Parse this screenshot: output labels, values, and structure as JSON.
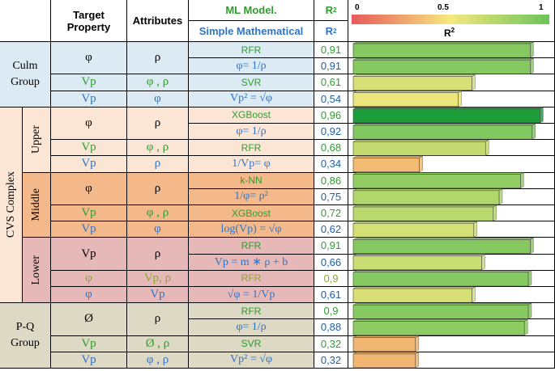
{
  "header": {
    "target_property": "Target Property",
    "attributes": "Attributes",
    "ml_model": "ML Model.",
    "simple_math": "Simple Mathematical",
    "r2_label": "R",
    "r2_sup": "2"
  },
  "legend": {
    "tick_min": "0",
    "tick_mid": "0.5",
    "tick_max": "1",
    "title": "R",
    "title_sup": "2",
    "gradient_colors": [
      "#e8595b",
      "#f5e97e",
      "#6cc25a"
    ]
  },
  "groups": [
    {
      "label": "Culm Group"
    },
    {
      "label": "CVS Complex",
      "subgroups": [
        "Upper",
        "Middle",
        "Lower"
      ]
    },
    {
      "label": "P-Q Group"
    }
  ],
  "rows": [
    {
      "target": "φ",
      "attr": "ρ",
      "model": "RFR",
      "r2": "0,91",
      "value": 0.91
    },
    {
      "target": "",
      "attr": "",
      "model": "φ= 1/ρ",
      "r2": "0,91",
      "value": 0.91
    },
    {
      "target": "Vp",
      "attr": "φ , ρ",
      "model": "SVR",
      "r2": "0,61",
      "value": 0.61
    },
    {
      "target": "Vp",
      "attr": "φ",
      "model": "Vp² = √φ",
      "r2": "0,54",
      "value": 0.54
    },
    {
      "target": "φ",
      "attr": "ρ",
      "model": "XGBoost",
      "r2": "0,96",
      "value": 0.96
    },
    {
      "target": "",
      "attr": "",
      "model": "φ= 1/ρ",
      "r2": "0,92",
      "value": 0.92
    },
    {
      "target": "Vp",
      "attr": "φ , ρ",
      "model": "RFR",
      "r2": "0,68",
      "value": 0.68
    },
    {
      "target": "Vp",
      "attr": "ρ",
      "model": "1/Vp= φ",
      "r2": "0,34",
      "value": 0.34
    },
    {
      "target": "φ",
      "attr": "ρ",
      "model": "k-NN",
      "r2": "0,86",
      "value": 0.86
    },
    {
      "target": "",
      "attr": "",
      "model": "1/φ= ρ²",
      "r2": "0,75",
      "value": 0.75
    },
    {
      "target": "Vp",
      "attr": "φ , ρ",
      "model": "XGBoost",
      "r2": "0,72",
      "value": 0.72
    },
    {
      "target": "Vp",
      "attr": "φ",
      "model": "log(Vp) = √φ",
      "r2": "0,62",
      "value": 0.62
    },
    {
      "target": "Vp",
      "attr": "ρ",
      "model": "RFR",
      "r2": "0,91",
      "value": 0.91
    },
    {
      "target": "",
      "attr": "",
      "model": "Vp = m ∗ ρ + b",
      "r2": "0,66",
      "value": 0.66
    },
    {
      "target": "φ",
      "attr": "Vp, ρ",
      "model": "RFR",
      "r2": "0,9",
      "value": 0.9
    },
    {
      "target": "φ",
      "attr": "Vp",
      "model": "√φ = 1/Vp",
      "r2": "0,61",
      "value": 0.61
    },
    {
      "target": "Ø",
      "attr": "ρ",
      "model": "RFR",
      "r2": "0,9",
      "value": 0.9
    },
    {
      "target": "",
      "attr": "",
      "model": "φ= 1/ρ",
      "r2": "0,88",
      "value": 0.88
    },
    {
      "target": "Vp",
      "attr": "Ø , ρ",
      "model": "SVR",
      "r2": "0,32",
      "value": 0.32
    },
    {
      "target": "Vp",
      "attr": "φ , ρ",
      "model": "Vp² = √φ",
      "r2": "0,32",
      "value": 0.32
    }
  ],
  "chart_data": {
    "type": "bar",
    "orientation": "horizontal",
    "xlim": [
      0,
      1
    ],
    "xlabel": "R²",
    "categories": [
      "RFR",
      "φ= 1/ρ",
      "SVR",
      "Vp² = √φ",
      "XGBoost",
      "φ= 1/ρ",
      "RFR",
      "1/Vp= φ",
      "k-NN",
      "1/φ= ρ²",
      "XGBoost",
      "log(Vp) = √φ",
      "RFR",
      "Vp = m ∗ ρ + b",
      "RFR",
      "√φ = 1/Vp",
      "RFR",
      "φ= 1/ρ",
      "SVR",
      "Vp² = √φ"
    ],
    "values": [
      0.91,
      0.91,
      0.61,
      0.54,
      0.96,
      0.92,
      0.68,
      0.34,
      0.86,
      0.75,
      0.72,
      0.62,
      0.91,
      0.66,
      0.9,
      0.61,
      0.9,
      0.88,
      0.32,
      0.32
    ],
    "grid": false
  }
}
